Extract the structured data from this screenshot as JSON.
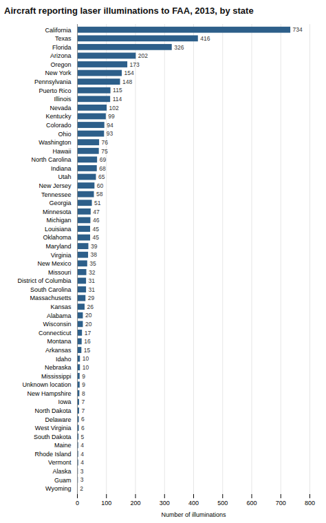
{
  "chart_data": {
    "type": "bar",
    "orientation": "horizontal",
    "title": "Aircraft reporting laser illuminations to FAA, 2013, by state",
    "xlabel": "Number of illuminations",
    "color": "#2d5f8a",
    "categories": [
      "California",
      "Texas",
      "Florida",
      "Arizona",
      "Oregon",
      "New York",
      "Pennsylvania",
      "Puerto Rico",
      "Illinois",
      "Nevada",
      "Kentucky",
      "Colorado",
      "Ohio",
      "Washington",
      "Hawaii",
      "North Carolina",
      "Indiana",
      "Utah",
      "New Jersey",
      "Tennessee",
      "Georgia",
      "Minnesota",
      "Michigan",
      "Louisiana",
      "Oklahoma",
      "Maryland",
      "Virginia",
      "New Mexico",
      "Missouri",
      "District of Columbia",
      "South Carolina",
      "Massachusetts",
      "Kansas",
      "Alabama",
      "Wisconsin",
      "Connecticut",
      "Montana",
      "Arkansas",
      "Idaho",
      "Nebraska",
      "Mississippi",
      "Unknown location",
      "New Hampshire",
      "Iowa",
      "North Dakota",
      "Delaware",
      "West Virginia",
      "South Dakota",
      "Maine",
      "Rhode Island",
      "Vermont",
      "Alaska",
      "Guam",
      "Wyoming"
    ],
    "values": [
      734,
      416,
      326,
      202,
      173,
      154,
      148,
      115,
      114,
      102,
      99,
      94,
      93,
      76,
      75,
      69,
      68,
      65,
      60,
      58,
      51,
      47,
      46,
      45,
      45,
      39,
      38,
      35,
      32,
      31,
      31,
      29,
      26,
      20,
      20,
      17,
      16,
      15,
      10,
      10,
      9,
      9,
      8,
      7,
      7,
      6,
      6,
      5,
      4,
      4,
      4,
      3,
      3,
      2
    ],
    "xlim": [
      0,
      800
    ],
    "xticks": [
      0,
      100,
      200,
      300,
      400,
      500,
      600,
      700,
      800
    ],
    "grid": true,
    "data_labels": true
  }
}
